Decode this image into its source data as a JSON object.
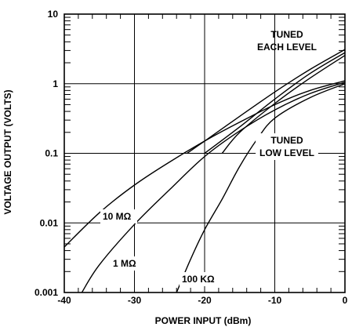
{
  "chart_data": {
    "type": "line",
    "title": "",
    "xlabel": "POWER INPUT (dBm)",
    "ylabel": "VOLTAGE OUTPUT (VOLTS)",
    "x_scale": "linear",
    "y_scale": "log",
    "xlim": [
      -40,
      0
    ],
    "ylim": [
      0.001,
      10
    ],
    "x_ticks": [
      -40,
      -30,
      -20,
      -10,
      0
    ],
    "x_tick_labels": [
      "-40",
      "-30",
      "-20",
      "-10",
      "0"
    ],
    "y_ticks": [
      0.001,
      0.01,
      0.1,
      1,
      10
    ],
    "y_tick_labels": [
      "0.001",
      "0.01",
      "0.1",
      "1",
      "10"
    ],
    "grid": true,
    "series": [
      {
        "name": "10 MΩ",
        "x": [
          -40,
          -35,
          -30,
          -25,
          -20,
          -15,
          -10,
          -5,
          0
        ],
        "y": [
          0.0045,
          0.014,
          0.035,
          0.075,
          0.15,
          0.28,
          0.5,
          0.8,
          1.1
        ]
      },
      {
        "name": "1 MΩ",
        "x": [
          -37.5,
          -35,
          -30,
          -25,
          -20,
          -15,
          -10,
          -5,
          0
        ],
        "y": [
          0.001,
          0.0025,
          0.0095,
          0.03,
          0.09,
          0.21,
          0.42,
          0.72,
          1.05
        ]
      },
      {
        "name": "100 KΩ",
        "x": [
          -24,
          -22,
          -20,
          -17.5,
          -15,
          -12.5,
          -10,
          -5,
          0
        ],
        "y": [
          0.001,
          0.003,
          0.008,
          0.022,
          0.065,
          0.16,
          0.32,
          0.63,
          1.0
        ]
      },
      {
        "name": "",
        "x": [
          -22.5,
          -20,
          -15,
          -10,
          -5,
          0
        ],
        "y": [
          0.1,
          0.15,
          0.34,
          0.76,
          1.6,
          3.1
        ]
      },
      {
        "name": "",
        "x": [
          -20,
          -15,
          -10,
          -5,
          0
        ],
        "y": [
          0.1,
          0.24,
          0.6,
          1.4,
          2.8
        ]
      },
      {
        "name": "",
        "x": [
          -17.5,
          -15,
          -10,
          -5,
          0
        ],
        "y": [
          0.1,
          0.2,
          0.52,
          1.2,
          2.55
        ]
      }
    ],
    "annotations": [
      {
        "text": [
          "TUNED",
          "EACH LEVEL"
        ]
      },
      {
        "text": [
          "TUNED",
          "LOW LEVEL"
        ]
      },
      {
        "text": [
          "10 MΩ"
        ]
      },
      {
        "text": [
          "1 MΩ"
        ]
      },
      {
        "text": [
          "100 KΩ"
        ]
      }
    ]
  }
}
